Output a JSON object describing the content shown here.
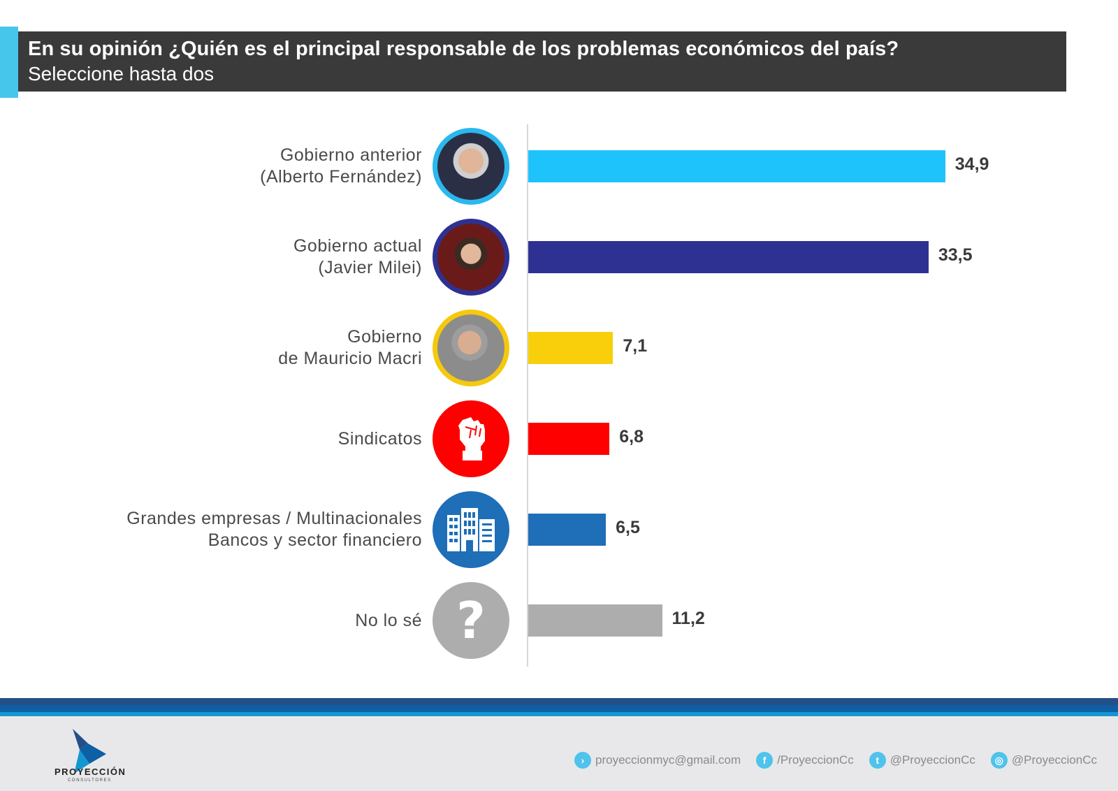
{
  "header": {
    "title": "En su opinión ¿Quién es el principal responsable de los problemas económicos del país?",
    "subtitle": "Seleccione hasta dos"
  },
  "chart_data": {
    "type": "bar",
    "orientation": "horizontal",
    "title": "En su opinión ¿Quién es el principal responsable de los problemas económicos del país?",
    "subtitle": "Seleccione hasta dos",
    "xlabel": "",
    "ylabel": "",
    "xlim": [
      0,
      40
    ],
    "grid": false,
    "legend": "none",
    "categories": [
      "Gobierno anterior (Alberto Fernández)",
      "Gobierno actual (Javier Milei)",
      "Gobierno de Mauricio Macri",
      "Sindicatos",
      "Grandes empresas / Multinacionales Bancos y sector financiero",
      "No lo sé"
    ],
    "values": [
      34.9,
      33.5,
      7.1,
      6.8,
      6.5,
      11.2
    ],
    "value_labels": [
      "34,9",
      "33,5",
      "7,1",
      "6,8",
      "6,5",
      "11,2"
    ],
    "colors": [
      "#1fc3fb",
      "#2e3192",
      "#f8cf0a",
      "#fe0000",
      "#1e6eb8",
      "#adadad"
    ]
  },
  "rows": [
    {
      "line1": "Gobierno anterior",
      "line2": "(Alberto Fernández)",
      "icon": "portrait-alberto-fernandez",
      "value": "34,9"
    },
    {
      "line1": "Gobierno actual",
      "line2": "(Javier Milei)",
      "icon": "portrait-javier-milei",
      "value": "33,5"
    },
    {
      "line1": "Gobierno",
      "line2": "de Mauricio Macri",
      "icon": "portrait-mauricio-macri",
      "value": "7,1"
    },
    {
      "line1": "Sindicatos",
      "line2": "",
      "icon": "raised-fist-icon",
      "value": "6,8"
    },
    {
      "line1": "Grandes empresas / Multinacionales",
      "line2": "Bancos y sector financiero",
      "icon": "building-icon",
      "value": "6,5"
    },
    {
      "line1": "No lo sé",
      "line2": "",
      "icon": "question-mark-icon",
      "value": "11,2"
    }
  ],
  "footer": {
    "brand": "PROYECCIÓN",
    "brand_sub": "CONSULTORES",
    "contacts": [
      {
        "icon": "arrow-circle-icon",
        "glyph": "›",
        "text": "proyeccionmyc@gmail.com"
      },
      {
        "icon": "facebook-icon",
        "glyph": "f",
        "text": "/ProyeccionCc"
      },
      {
        "icon": "twitter-icon",
        "glyph": "t",
        "text": "@ProyeccionCc"
      },
      {
        "icon": "instagram-icon",
        "glyph": "◎",
        "text": "@ProyeccionCc"
      }
    ],
    "colors": {
      "accent": "#47c6ec",
      "stripe_dark": "#24508a",
      "stripe_mid": "#0e5fa3",
      "stripe_light": "#1397d1"
    }
  }
}
